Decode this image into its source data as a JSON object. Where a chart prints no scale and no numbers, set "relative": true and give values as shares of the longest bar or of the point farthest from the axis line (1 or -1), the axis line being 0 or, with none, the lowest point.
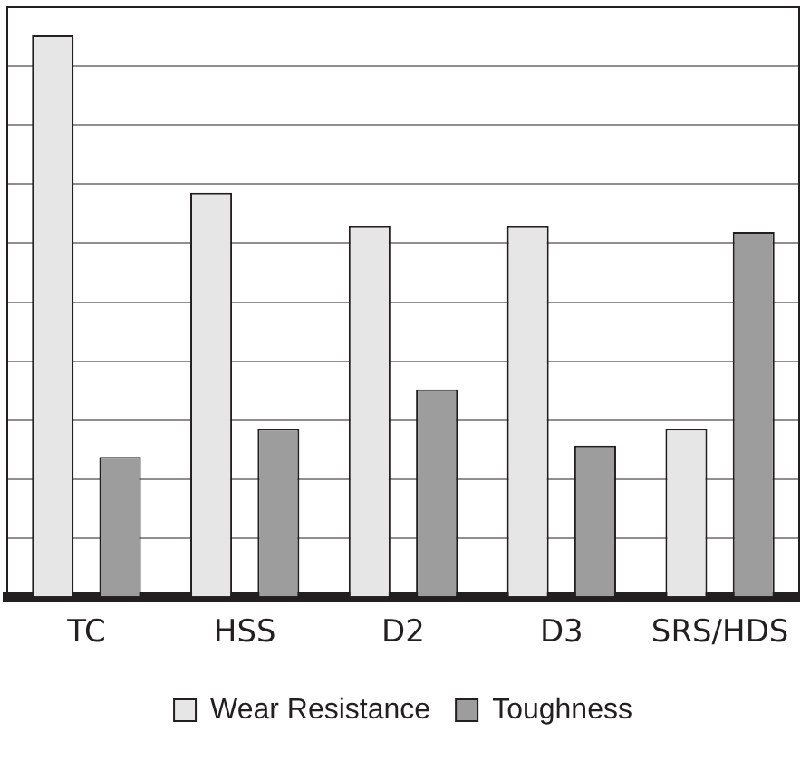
{
  "chart_data": {
    "type": "bar",
    "relative": true,
    "categories": [
      "TC",
      "HSS",
      "D2",
      "D3",
      "SRS/HDS"
    ],
    "series": [
      {
        "name": "Wear Resistance",
        "color": "#e6e6e6",
        "values": [
          1,
          0.72,
          0.66,
          0.66,
          0.3
        ]
      },
      {
        "name": "Toughness",
        "color": "#9d9d9d",
        "values": [
          0.25,
          0.3,
          0.37,
          0.27,
          0.65
        ]
      }
    ],
    "grid": "y",
    "legend": "bottom"
  }
}
